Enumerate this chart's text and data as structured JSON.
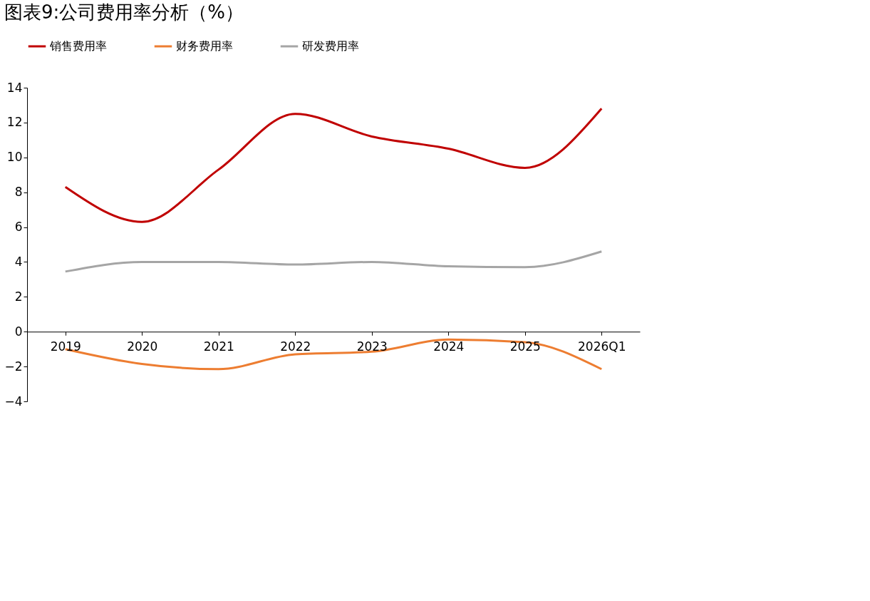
{
  "chart_data": {
    "type": "line",
    "title": "图表9:公司费用率分析（%）",
    "categories": [
      "2019",
      "2020",
      "2021",
      "2022",
      "2023",
      "2024",
      "2025",
      "2026Q1"
    ],
    "series": [
      {
        "name": "销售费用率",
        "color": "#c00000",
        "values": [
          8.3,
          6.3,
          9.3,
          12.5,
          11.2,
          10.5,
          9.4,
          12.8
        ]
      },
      {
        "name": "财务费用率",
        "color": "#ed7d31",
        "values": [
          -1.0,
          -1.85,
          -2.15,
          -1.3,
          -1.15,
          -0.45,
          -0.6,
          -2.15
        ]
      },
      {
        "name": "研发费用率",
        "color": "#a5a5a5",
        "values": [
          3.45,
          4.0,
          4.0,
          3.85,
          4.0,
          3.75,
          3.7,
          4.6
        ]
      }
    ],
    "ylim": [
      -4,
      14
    ],
    "yticks": [
      -4,
      -2,
      0,
      2,
      4,
      6,
      8,
      10,
      12,
      14
    ],
    "grid": false,
    "legend": "top",
    "marker": "none",
    "line_style": "solid"
  }
}
